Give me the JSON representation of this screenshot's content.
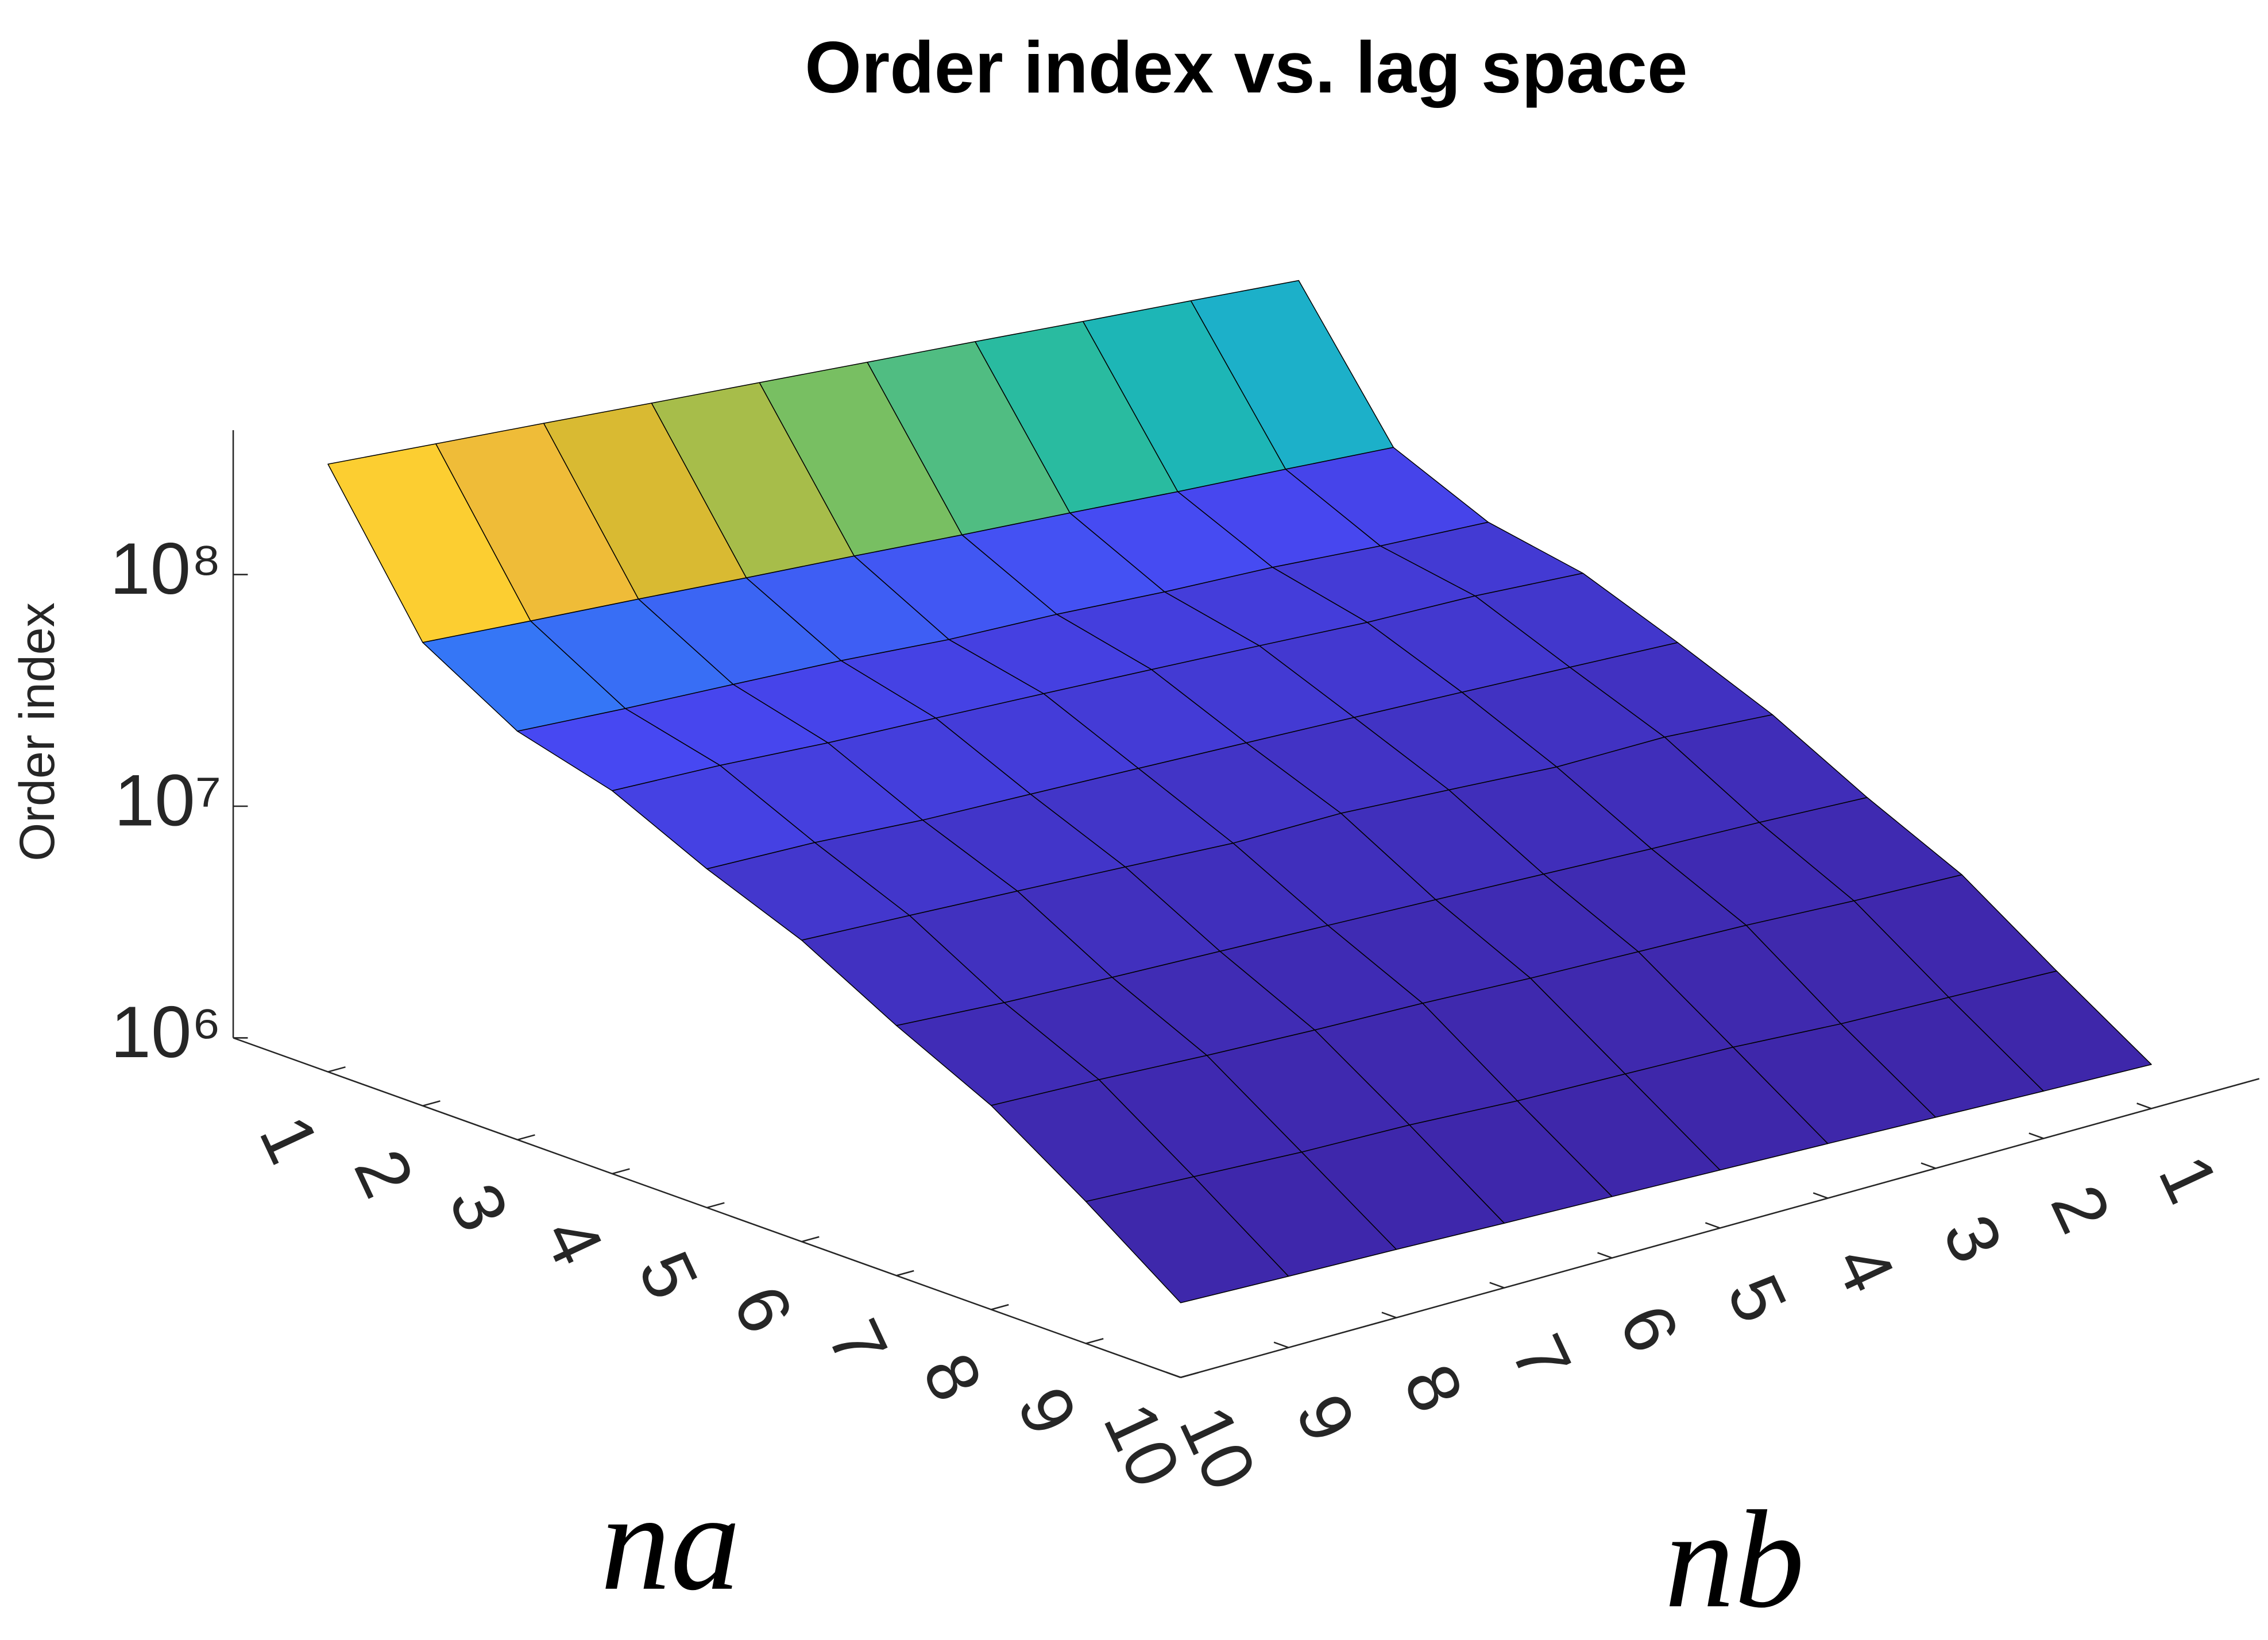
{
  "chart_data": {
    "type": "surface",
    "title": "Order index vs. lag space",
    "xlabel": "na",
    "ylabel": "nb",
    "zlabel": "Order index",
    "x": [
      1,
      2,
      3,
      4,
      5,
      6,
      7,
      8,
      9,
      10
    ],
    "y": [
      1,
      2,
      3,
      4,
      5,
      6,
      7,
      8,
      9,
      10
    ],
    "z": [
      [
        180000000.0,
        198000000.0,
        217000000.0,
        239000000.0,
        262000000.0,
        288000000.0,
        316000000.0,
        348000000.0,
        382000000.0,
        420000000.0
      ],
      [
        48000000.0,
        52000000.0,
        56000000.0,
        61000000.0,
        66000000.0,
        72000000.0,
        78000000.0,
        85000000.0,
        92000000.0,
        100000000.0
      ],
      [
        32000000.0,
        34000000.0,
        37000000.0,
        39000000.0,
        42000000.0,
        44000000.0,
        48000000.0,
        51000000.0,
        54000000.0,
        58000000.0
      ],
      [
        27000000.0,
        29000000.0,
        30000000.0,
        32000000.0,
        34000000.0,
        36000000.0,
        38000000.0,
        40000000.0,
        43000000.0,
        45000000.0
      ],
      [
        19000000.0,
        20000000.0,
        21000000.0,
        22000000.0,
        23000000.0,
        24000000.0,
        25000000.0,
        26000000.0,
        28000000.0,
        29000000.0
      ],
      [
        13000000.0,
        14000000.0,
        14000000.0,
        15000000.0,
        16000000.0,
        16000000.0,
        17000000.0,
        18000000.0,
        19000000.0,
        20000000.0
      ],
      [
        8000000.0,
        8400000.0,
        8700000.0,
        9100000.0,
        9500000.0,
        9900000.0,
        10300000.0,
        10700000.0,
        11200000.0,
        12000000.0
      ],
      [
        5200000.0,
        5400000.0,
        5700000.0,
        5900000.0,
        6100000.0,
        6400000.0,
        6600000.0,
        6900000.0,
        7300000.0,
        7600000.0
      ],
      [
        2800000.0,
        2900000.0,
        3000000.0,
        3200000.0,
        3300000.0,
        3400000.0,
        3600000.0,
        3700000.0,
        3900000.0,
        4100000.0
      ],
      [
        1550000.0,
        1600000.0,
        1660000.0,
        1720000.0,
        1780000.0,
        1840000.0,
        1900000.0,
        1970000.0,
        2030000.0,
        2100000.0
      ]
    ],
    "xlim": [
      0,
      10
    ],
    "ylim": [
      0,
      10
    ],
    "zlim": [
      1000000,
      420000000
    ],
    "xticks": [
      1,
      2,
      3,
      4,
      5,
      6,
      7,
      8,
      9,
      10
    ],
    "yticks": [
      1,
      2,
      3,
      4,
      5,
      6,
      7,
      8,
      9,
      10
    ],
    "zticks": [
      {
        "value": 1000000,
        "label": "10⁶"
      },
      {
        "value": 10000000,
        "label": "10⁷"
      },
      {
        "value": 100000000,
        "label": "10⁸"
      }
    ],
    "zscale": "log",
    "colormap": "parula",
    "edge_color": "#000000"
  }
}
